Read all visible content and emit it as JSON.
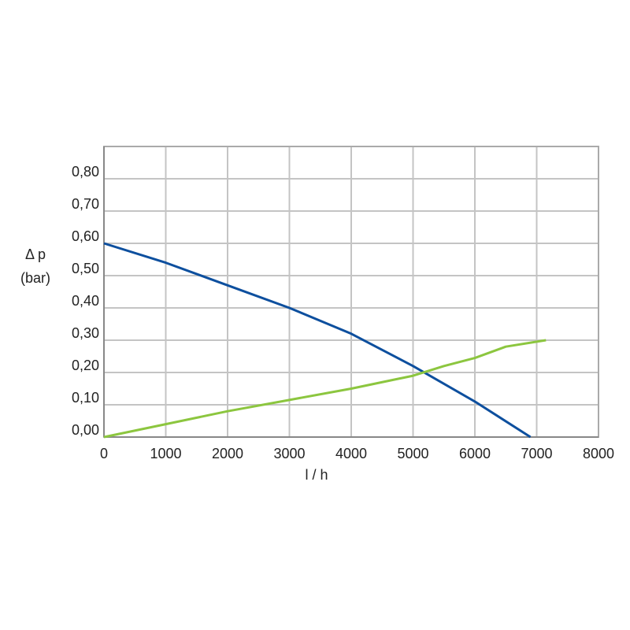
{
  "chart_data": {
    "type": "line",
    "ylabel": [
      "Δ p",
      "(bar)"
    ],
    "xlabel": "l / h",
    "xlim": [
      0,
      8000
    ],
    "xticks": [
      0,
      1000,
      2000,
      3000,
      4000,
      5000,
      6000,
      7000,
      8000
    ],
    "ylim": [
      0,
      0.9
    ],
    "yticks": [
      {
        "value": 0,
        "label": "0,00"
      },
      {
        "value": 0.1,
        "label": "0,10"
      },
      {
        "value": 0.2,
        "label": "0,20"
      },
      {
        "value": 0.3,
        "label": "0,30"
      },
      {
        "value": 0.4,
        "label": "0,40"
      },
      {
        "value": 0.5,
        "label": "0,50"
      },
      {
        "value": 0.6,
        "label": "0,60"
      },
      {
        "value": 0.7,
        "label": "0,70"
      },
      {
        "value": 0.8,
        "label": "0,80"
      }
    ],
    "grid": true,
    "series": [
      {
        "color": "#0d4f9e",
        "x": [
          0,
          1000,
          2000,
          3000,
          4000,
          5000,
          6000,
          6900
        ],
        "values": [
          0.6,
          0.54,
          0.47,
          0.4,
          0.32,
          0.22,
          0.11,
          0.0
        ]
      },
      {
        "color": "#8cc63f",
        "x": [
          0,
          1000,
          2000,
          3000,
          4000,
          5000,
          5500,
          6000,
          6500,
          7150
        ],
        "values": [
          0.0,
          0.04,
          0.08,
          0.115,
          0.15,
          0.19,
          0.22,
          0.245,
          0.28,
          0.3
        ]
      }
    ]
  }
}
